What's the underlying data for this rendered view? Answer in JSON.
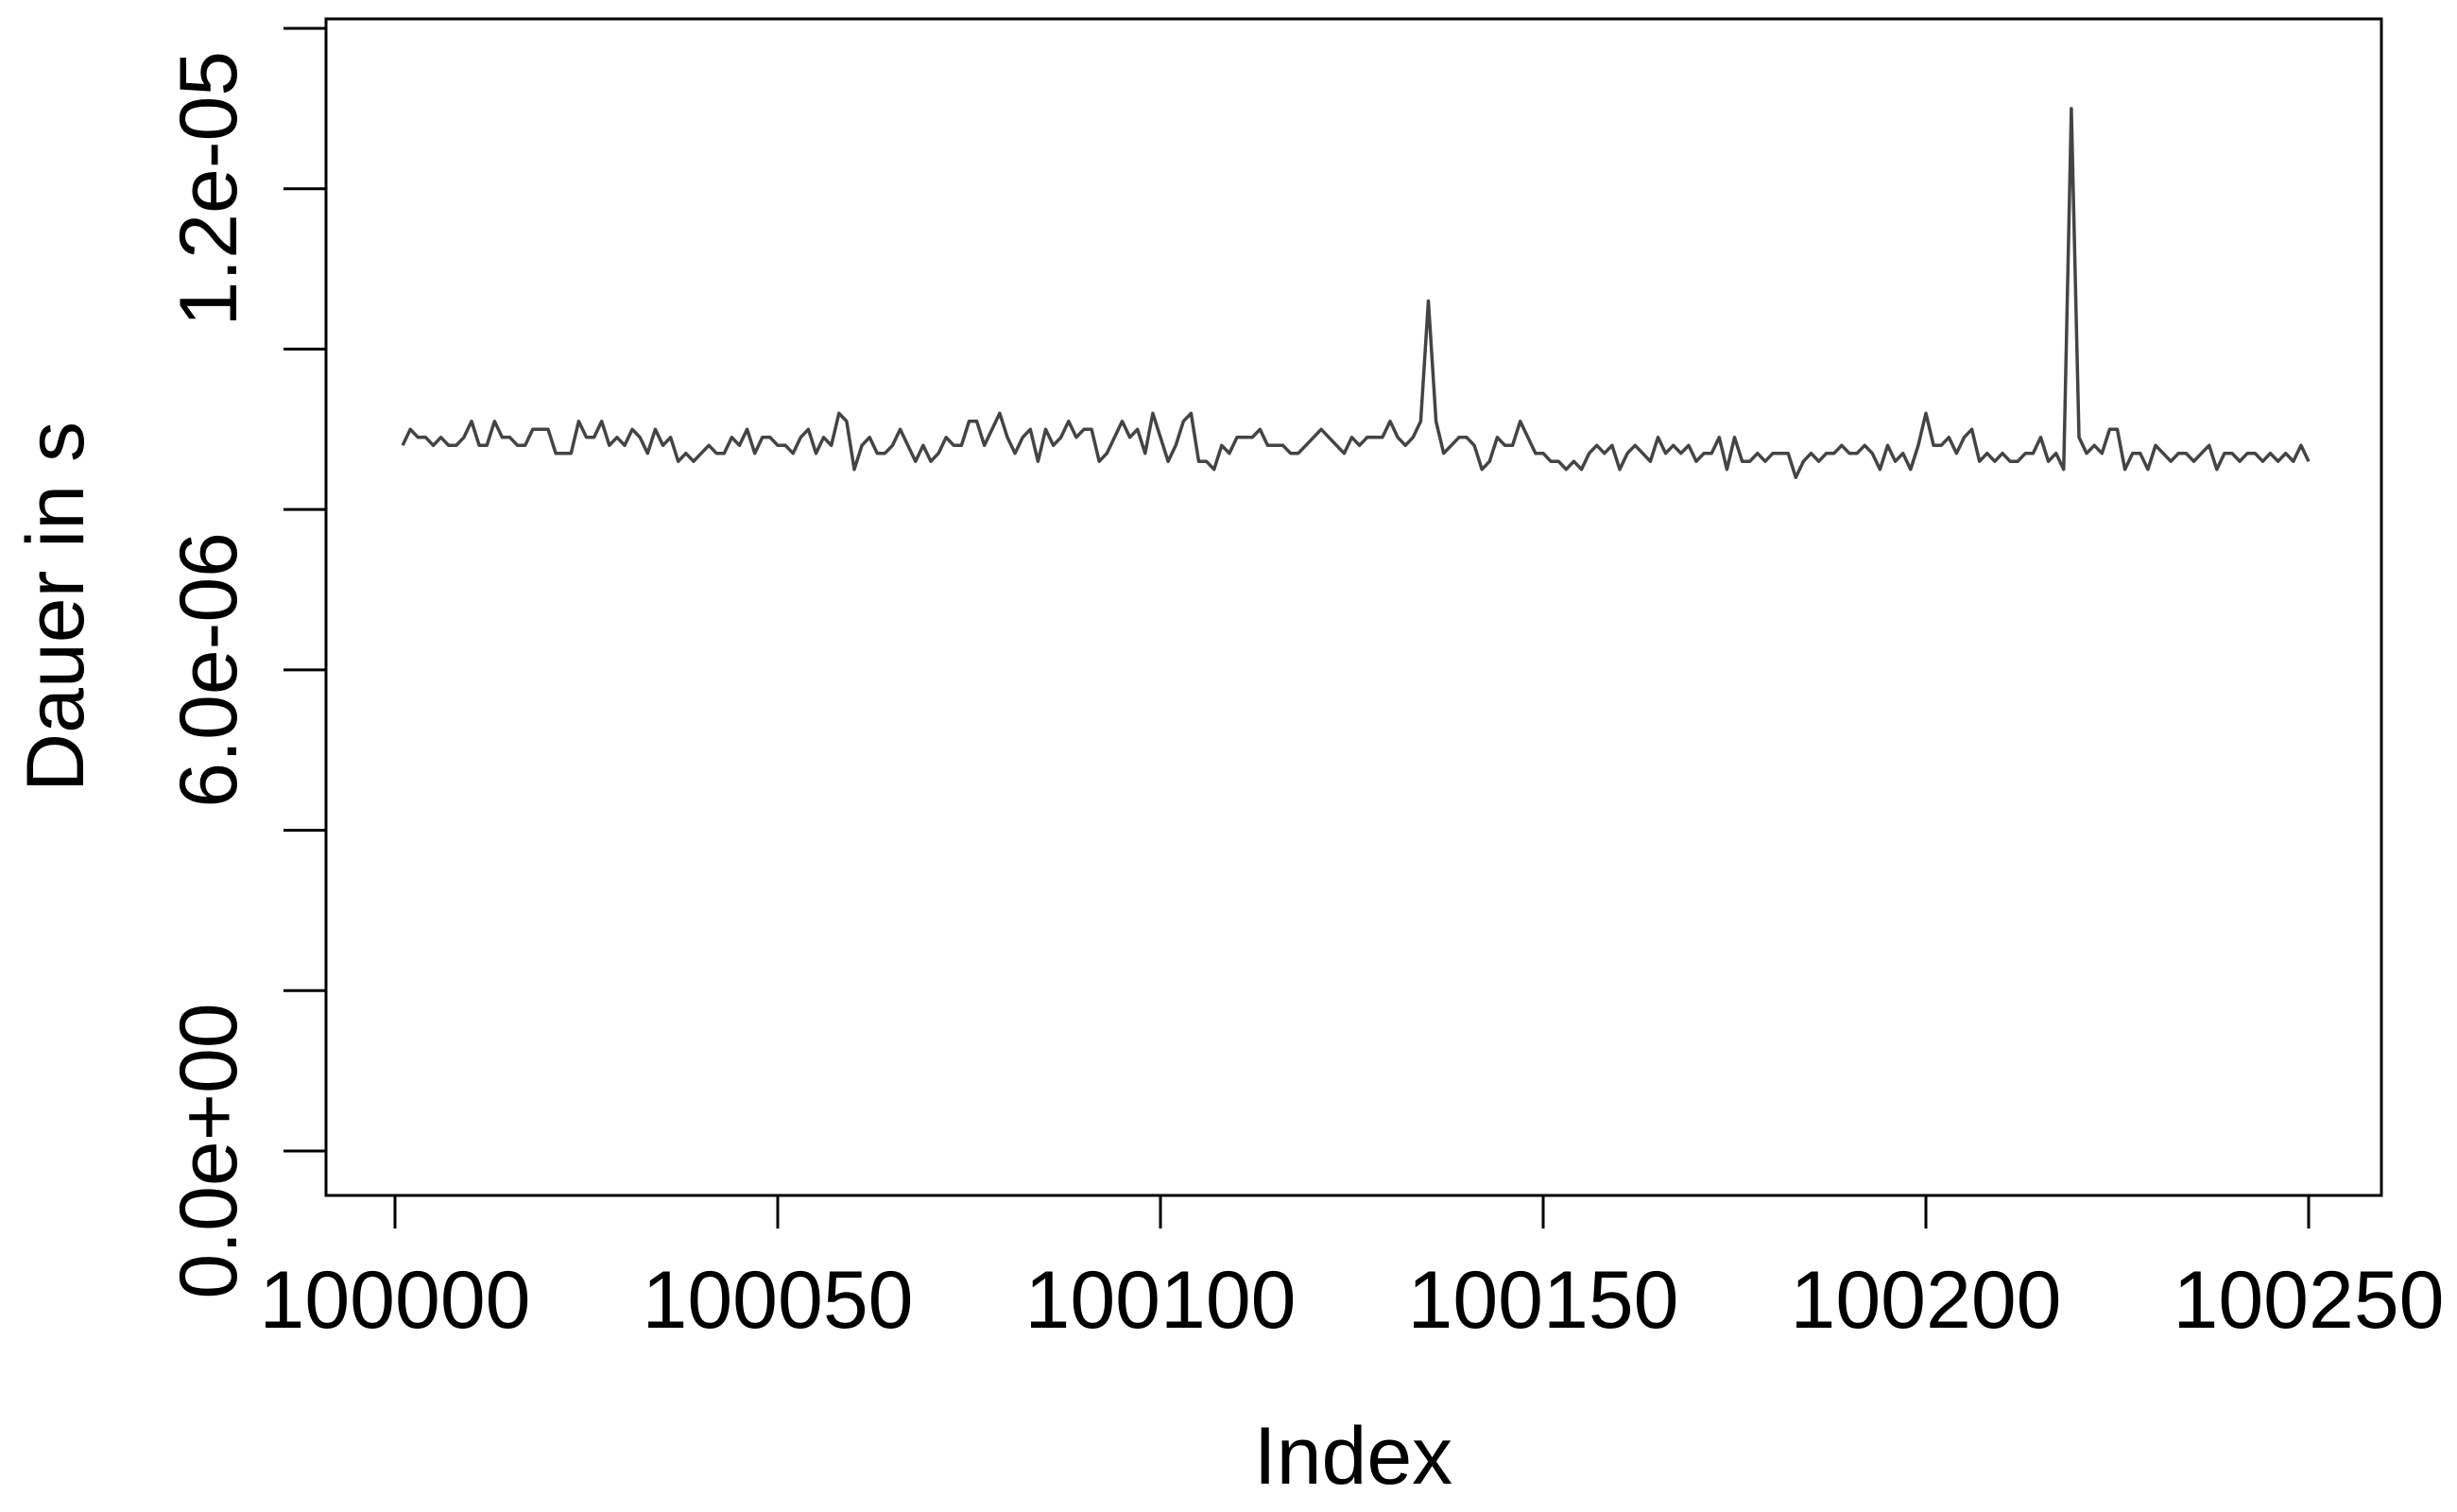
{
  "chart_data": {
    "type": "line",
    "title": "",
    "xlabel": "Index",
    "ylabel": "Dauer in s",
    "xlim": [
      100000,
      100250
    ],
    "ylim": [
      0,
      1.4e-05
    ],
    "x_ticks": [
      100000,
      100050,
      100100,
      100150,
      100200,
      100250
    ],
    "x_tick_labels": [
      "100000",
      "100050",
      "100100",
      "100150",
      "100200",
      "100250"
    ],
    "y_ticks": [
      0,
      2e-06,
      4e-06,
      6e-06,
      8e-06,
      1e-05,
      1.2e-05,
      1.4e-05
    ],
    "y_tick_labels": [
      "0.0e+00",
      "",
      "",
      "6.0e-06",
      "",
      "",
      "1.2e-05",
      ""
    ],
    "line_color": "#444444",
    "series": [
      {
        "x_start": 100001,
        "x_step": 1,
        "values": [
          8.8e-06,
          9e-06,
          8.9e-06,
          8.9e-06,
          8.8e-06,
          8.9e-06,
          8.8e-06,
          8.8e-06,
          8.9e-06,
          9.1e-06,
          8.8e-06,
          8.8e-06,
          9.1e-06,
          8.9e-06,
          8.9e-06,
          8.8e-06,
          8.8e-06,
          9e-06,
          9e-06,
          9e-06,
          8.7e-06,
          8.7e-06,
          8.7e-06,
          9.1e-06,
          8.9e-06,
          8.9e-06,
          9.1e-06,
          8.8e-06,
          8.9e-06,
          8.8e-06,
          9e-06,
          8.9e-06,
          8.7e-06,
          9e-06,
          8.8e-06,
          8.9e-06,
          8.6e-06,
          8.7e-06,
          8.6e-06,
          8.7e-06,
          8.8e-06,
          8.7e-06,
          8.7e-06,
          8.9e-06,
          8.8e-06,
          9e-06,
          8.7e-06,
          8.9e-06,
          8.9e-06,
          8.8e-06,
          8.8e-06,
          8.7e-06,
          8.9e-06,
          9e-06,
          8.7e-06,
          8.9e-06,
          8.8e-06,
          9.2e-06,
          9.1e-06,
          8.5e-06,
          8.8e-06,
          8.9e-06,
          8.7e-06,
          8.7e-06,
          8.8e-06,
          9e-06,
          8.8e-06,
          8.6e-06,
          8.8e-06,
          8.6e-06,
          8.7e-06,
          8.9e-06,
          8.8e-06,
          8.8e-06,
          9.1e-06,
          9.1e-06,
          8.8e-06,
          9e-06,
          9.2e-06,
          8.9e-06,
          8.7e-06,
          8.9e-06,
          9e-06,
          8.6e-06,
          9e-06,
          8.8e-06,
          8.9e-06,
          9.1e-06,
          8.9e-06,
          9e-06,
          9e-06,
          8.6e-06,
          8.7e-06,
          8.9e-06,
          9.1e-06,
          8.9e-06,
          9e-06,
          8.7e-06,
          9.2e-06,
          8.9e-06,
          8.6e-06,
          8.8e-06,
          9.1e-06,
          9.2e-06,
          8.6e-06,
          8.6e-06,
          8.5e-06,
          8.8e-06,
          8.7e-06,
          8.9e-06,
          8.9e-06,
          8.9e-06,
          9e-06,
          8.8e-06,
          8.8e-06,
          8.8e-06,
          8.7e-06,
          8.7e-06,
          8.8e-06,
          8.9e-06,
          9e-06,
          8.9e-06,
          8.8e-06,
          8.7e-06,
          8.9e-06,
          8.8e-06,
          8.9e-06,
          8.9e-06,
          8.9e-06,
          9.1e-06,
          8.9e-06,
          8.8e-06,
          8.9e-06,
          9.1e-06,
          1.06e-05,
          9.1e-06,
          8.7e-06,
          8.8e-06,
          8.9e-06,
          8.9e-06,
          8.8e-06,
          8.5e-06,
          8.6e-06,
          8.9e-06,
          8.8e-06,
          8.8e-06,
          9.1e-06,
          8.9e-06,
          8.7e-06,
          8.7e-06,
          8.6e-06,
          8.6e-06,
          8.5e-06,
          8.6e-06,
          8.5e-06,
          8.7e-06,
          8.8e-06,
          8.7e-06,
          8.8e-06,
          8.5e-06,
          8.7e-06,
          8.8e-06,
          8.7e-06,
          8.6e-06,
          8.9e-06,
          8.7e-06,
          8.8e-06,
          8.7e-06,
          8.8e-06,
          8.6e-06,
          8.7e-06,
          8.7e-06,
          8.9e-06,
          8.5e-06,
          8.9e-06,
          8.6e-06,
          8.6e-06,
          8.7e-06,
          8.6e-06,
          8.7e-06,
          8.7e-06,
          8.7e-06,
          8.4e-06,
          8.6e-06,
          8.7e-06,
          8.6e-06,
          8.7e-06,
          8.7e-06,
          8.8e-06,
          8.7e-06,
          8.7e-06,
          8.8e-06,
          8.7e-06,
          8.5e-06,
          8.8e-06,
          8.6e-06,
          8.7e-06,
          8.5e-06,
          8.8e-06,
          9.2e-06,
          8.8e-06,
          8.8e-06,
          8.9e-06,
          8.7e-06,
          8.9e-06,
          9e-06,
          8.6e-06,
          8.7e-06,
          8.6e-06,
          8.7e-06,
          8.6e-06,
          8.6e-06,
          8.7e-06,
          8.7e-06,
          8.9e-06,
          8.6e-06,
          8.7e-06,
          8.5e-06,
          1.3e-05,
          8.9e-06,
          8.7e-06,
          8.8e-06,
          8.7e-06,
          9e-06,
          9e-06,
          8.5e-06,
          8.7e-06,
          8.7e-06,
          8.5e-06,
          8.8e-06,
          8.7e-06,
          8.6e-06,
          8.7e-06,
          8.7e-06,
          8.6e-06,
          8.7e-06,
          8.8e-06,
          8.5e-06,
          8.7e-06,
          8.7e-06,
          8.6e-06,
          8.7e-06,
          8.7e-06,
          8.6e-06,
          8.7e-06,
          8.6e-06,
          8.7e-06,
          8.6e-06,
          8.8e-06,
          8.6e-06
        ]
      }
    ]
  }
}
